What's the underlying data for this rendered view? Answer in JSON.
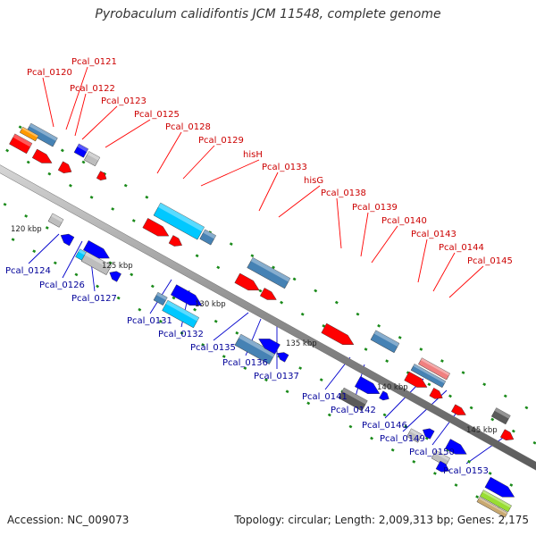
{
  "title": "Pyrobaculum calidifontis JCM 11548, complete genome",
  "footer": {
    "accession": "Accession: NC_009073",
    "summary": "Topology: circular; Length: 2,009,313 bp; Genes: 2,175"
  },
  "colors": {
    "upper_label": "#cc0000",
    "lower_label": "#000099",
    "leader": "#ff0000",
    "leader_lower": "#0000cc",
    "backbone": "#8c8c8c",
    "tick": "#1a8a1a",
    "red_gene": "#ff0000",
    "blue_gene": "#0000ff",
    "steel_gene": "#4682b4",
    "cyan_gene": "#00c8ff",
    "grey_gene": "#bdbdbd",
    "dark_grey_gene": "#5a5a5a",
    "orange_gene": "#ff9900",
    "pink_gene": "#f08080",
    "lime_gene": "#99dd33",
    "tan_gene": "#c8a870"
  },
  "scale_labels": [
    "120 kbp",
    "125 kbp",
    "130 kbp",
    "135 kbp",
    "140 kbp",
    "145 kbp"
  ],
  "upper_labels": [
    "Pcal_0120",
    "Pcal_0121",
    "Pcal_0122",
    "Pcal_0123",
    "Pcal_0125",
    "Pcal_0128",
    "Pcal_0129",
    "hisH",
    "Pcal_0133",
    "hisG",
    "Pcal_0138",
    "Pcal_0139",
    "Pcal_0140",
    "Pcal_0143",
    "Pcal_0144",
    "Pcal_0145"
  ],
  "lower_labels": [
    "Pcal_0124",
    "Pcal_0126",
    "Pcal_0127",
    "Pcal_0131",
    "Pcal_0132",
    "Pcal_0135",
    "Pcal_0136",
    "Pcal_0137",
    "Pcal_0141",
    "Pcal_0142",
    "Pcal_0146",
    "Pcal_0149",
    "Pcal_0150",
    "Pcal_0153"
  ]
}
